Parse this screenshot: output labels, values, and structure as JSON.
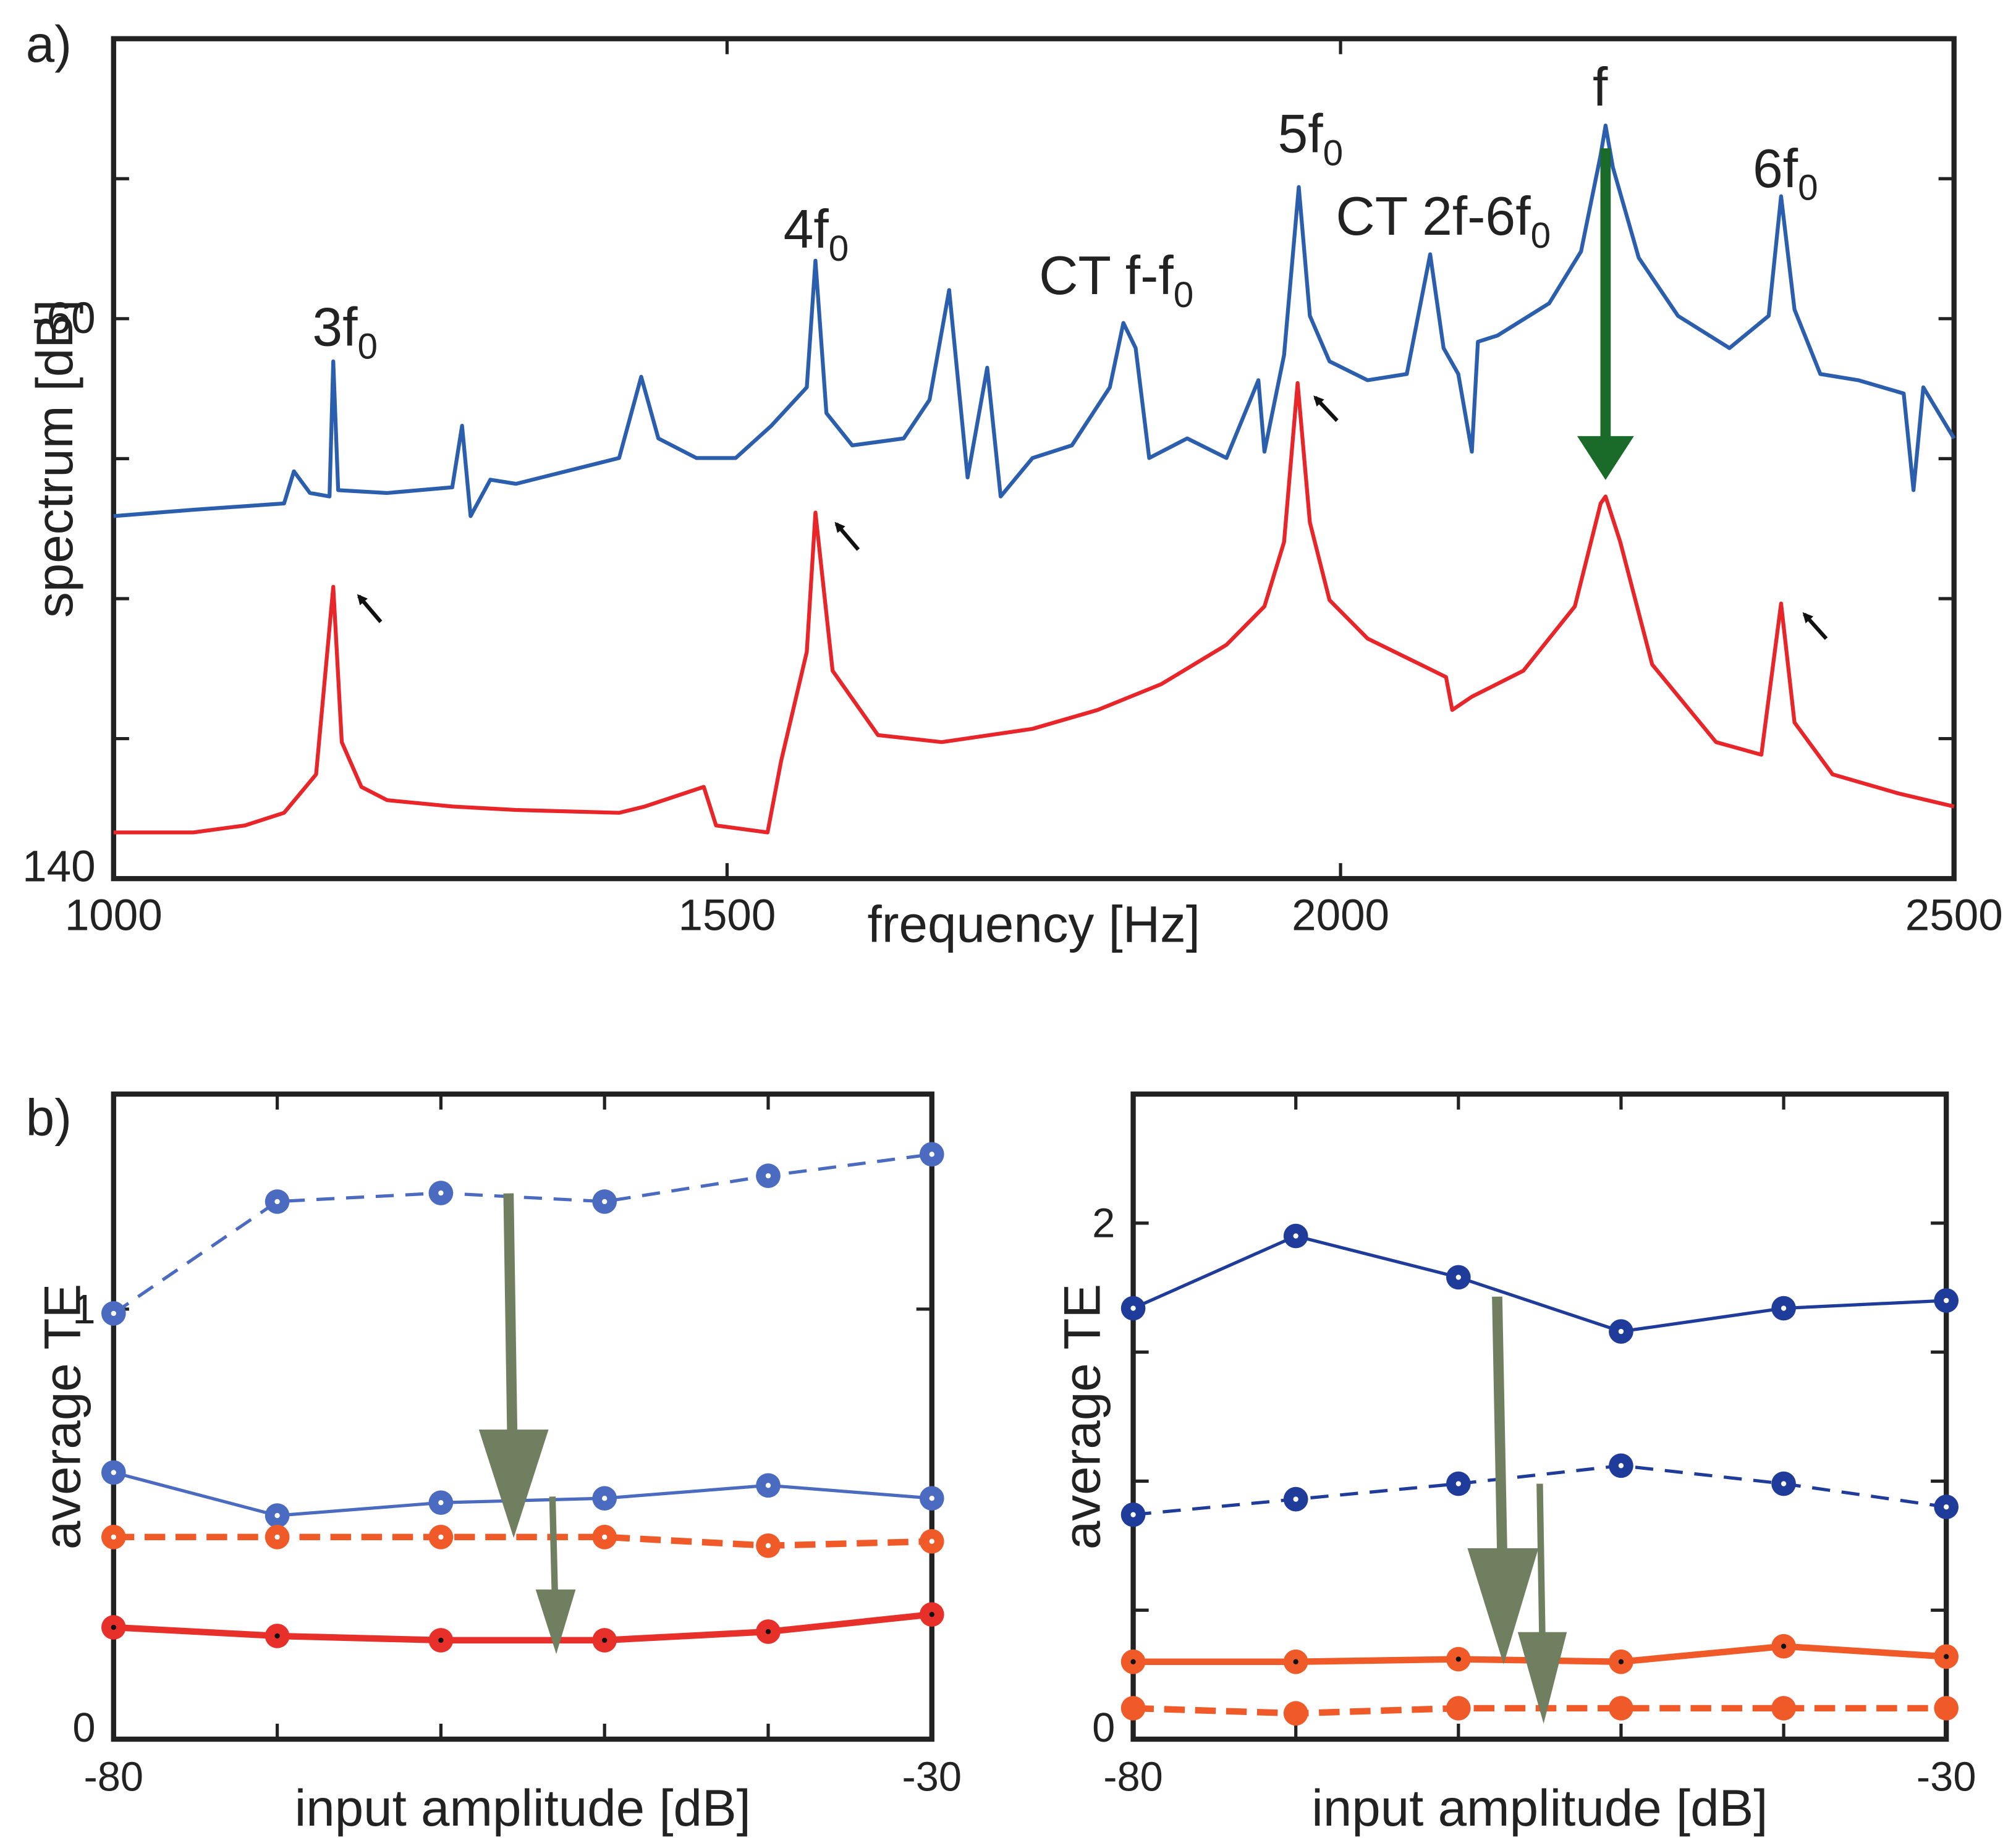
{
  "chart_data": [
    {
      "type": "line",
      "panel_label": "a)",
      "xlabel": "frequency [Hz]",
      "ylabel": "spectrum [dB]",
      "xlim": [
        1000,
        2500
      ],
      "xticks": [
        1000,
        1500,
        2000,
        2500
      ],
      "ylim": [
        -140,
        -20
      ],
      "yticks": [
        -60,
        {
          "value": -140,
          "label": "140"
        }
      ],
      "yminor_ticks": [
        -40,
        -80,
        -100,
        -120
      ],
      "annotations": [
        {
          "text": "3f",
          "sub": "0"
        },
        {
          "text": "4f",
          "sub": "0"
        },
        {
          "text": "CT f-f",
          "sub": "0"
        },
        {
          "text": "5f",
          "sub": "0"
        },
        {
          "text": "CT 2f-6f",
          "sub": "0"
        },
        {
          "text": "f"
        },
        {
          "text": "6f",
          "sub": "0"
        }
      ],
      "series": [
        {
          "color": "#2b5fad",
          "x": [
            1000,
            1065,
            1139,
            1147,
            1160,
            1176,
            1179,
            1183,
            1223,
            1276,
            1284,
            1291,
            1307,
            1328,
            1412,
            1430,
            1444,
            1475,
            1507,
            1536,
            1565,
            1572,
            1581,
            1602,
            1644,
            1665,
            1681,
            1696,
            1712,
            1723,
            1749,
            1781,
            1812,
            1823,
            1833,
            1844,
            1875,
            1907,
            1933,
            1938,
            1954,
            1966,
            1975,
            1991,
            2022,
            2054,
            2073,
            2084,
            2096,
            2107,
            2112,
            2128,
            2170,
            2196,
            2212,
            2216,
            2222,
            2243,
            2275,
            2317,
            2349,
            2359,
            2370,
            2391,
            2422,
            2459,
            2467,
            2475,
            2500
          ],
          "values": [
            -88.2,
            -87.3,
            -86.4,
            -81.8,
            -84.9,
            -85.4,
            -66.1,
            -84.5,
            -84.9,
            -84.1,
            -75.3,
            -88.2,
            -83.0,
            -83.6,
            -79.9,
            -68.3,
            -77.1,
            -79.9,
            -79.9,
            -75.3,
            -69.8,
            -51.7,
            -73.5,
            -78.1,
            -77.1,
            -71.6,
            -55.9,
            -82.7,
            -67.0,
            -85.4,
            -79.9,
            -78.1,
            -69.8,
            -60.6,
            -64.2,
            -79.9,
            -77.1,
            -79.9,
            -68.8,
            -79.0,
            -65.2,
            -41.2,
            -59.6,
            -66.1,
            -68.8,
            -67.9,
            -50.8,
            -64.2,
            -67.9,
            -79.0,
            -63.3,
            -62.4,
            -57.8,
            -50.4,
            -36.6,
            -32.4,
            -38.4,
            -51.3,
            -59.6,
            -64.2,
            -59.6,
            -42.5,
            -58.7,
            -67.9,
            -68.8,
            -70.7,
            -84.5,
            -69.8,
            -77.1
          ]
        },
        {
          "color": "#e8262a",
          "x": [
            1000,
            1065,
            1107,
            1139,
            1165,
            1179,
            1186,
            1202,
            1223,
            1276,
            1328,
            1412,
            1433,
            1481,
            1491,
            1533,
            1544,
            1565,
            1572,
            1586,
            1623,
            1675,
            1749,
            1802,
            1854,
            1907,
            1938,
            1954,
            1965,
            1975,
            1991,
            2022,
            2065,
            2086,
            2091,
            2107,
            2149,
            2191,
            2212,
            2216,
            2228,
            2254,
            2306,
            2343,
            2359,
            2370,
            2401,
            2454,
            2500
          ],
          "values": [
            -133.4,
            -133.4,
            -132.4,
            -130.6,
            -125.1,
            -98.3,
            -120.5,
            -126.9,
            -128.8,
            -129.7,
            -130.2,
            -130.6,
            -129.7,
            -126.9,
            -132.4,
            -133.4,
            -123.2,
            -107.6,
            -87.7,
            -110.3,
            -119.5,
            -120.5,
            -118.6,
            -115.9,
            -112.2,
            -106.6,
            -101.1,
            -91.9,
            -69.2,
            -89.1,
            -100.2,
            -105.7,
            -109.4,
            -111.2,
            -115.9,
            -114.0,
            -110.3,
            -101.1,
            -86.4,
            -85.4,
            -91.9,
            -109.4,
            -120.5,
            -122.3,
            -100.7,
            -117.7,
            -125.1,
            -127.8,
            -129.7
          ]
        }
      ]
    },
    {
      "type": "line",
      "panel_label": "b)",
      "xlabel": "input amplitude [dB]",
      "ylabel": "average TE",
      "xlim": [
        -80,
        -30
      ],
      "xticks": [
        -80,
        -30
      ],
      "xminor_ticks": [
        -70,
        -60,
        -50,
        -40
      ],
      "ylim": [
        0,
        1.5
      ],
      "yticks": [
        0,
        1
      ],
      "x": [
        -80,
        -70,
        -60,
        -50,
        -40,
        -30
      ],
      "series": [
        {
          "color": "#4a6bbf",
          "dot": "#ffffff",
          "style": "dashed",
          "weight": "thin",
          "values": [
            0.99,
            1.25,
            1.27,
            1.25,
            1.31,
            1.36
          ]
        },
        {
          "color": "#4a6bbf",
          "dot": "#ffffff",
          "style": "solid",
          "weight": "thin",
          "values": [
            0.62,
            0.52,
            0.55,
            0.56,
            0.59,
            0.56
          ]
        },
        {
          "color": "#f05a28",
          "dot": "#ffffff",
          "style": "dashed",
          "weight": "thick",
          "values": [
            0.47,
            0.47,
            0.47,
            0.47,
            0.45,
            0.46
          ]
        },
        {
          "color": "#e8302a",
          "dot": "#111111",
          "style": "solid",
          "weight": "thick",
          "values": [
            0.26,
            0.24,
            0.23,
            0.23,
            0.25,
            0.29
          ]
        }
      ]
    },
    {
      "type": "line",
      "xlabel": "input amplitude [dB]",
      "ylabel": "average TE",
      "xlim": [
        -80,
        -30
      ],
      "xticks": [
        -80,
        -30
      ],
      "xminor_ticks": [
        -70,
        -60,
        -50,
        -40
      ],
      "ylim": [
        0,
        2.5
      ],
      "yticks": [
        0,
        2
      ],
      "yminor_ticks": [
        0.5,
        1,
        1.5
      ],
      "x": [
        -80,
        -70,
        -60,
        -50,
        -40,
        -30
      ],
      "series": [
        {
          "color": "#1f3c9a",
          "dot": "#ffffff",
          "style": "solid",
          "weight": "thin",
          "values": [
            1.67,
            1.95,
            1.79,
            1.58,
            1.67,
            1.7
          ]
        },
        {
          "color": "#1f3c9a",
          "dot": "#ffffff",
          "style": "dashed",
          "weight": "thin",
          "values": [
            0.87,
            0.93,
            0.99,
            1.06,
            0.99,
            0.9
          ]
        },
        {
          "color": "#f05a28",
          "dot": "#111111",
          "style": "solid",
          "weight": "thick",
          "values": [
            0.3,
            0.3,
            0.31,
            0.3,
            0.36,
            0.32
          ]
        },
        {
          "color": "#f05a28",
          "dot": "#f05a28",
          "style": "dashed",
          "weight": "thick",
          "values": [
            0.12,
            0.1,
            0.12,
            0.12,
            0.12,
            0.12
          ]
        }
      ]
    }
  ]
}
